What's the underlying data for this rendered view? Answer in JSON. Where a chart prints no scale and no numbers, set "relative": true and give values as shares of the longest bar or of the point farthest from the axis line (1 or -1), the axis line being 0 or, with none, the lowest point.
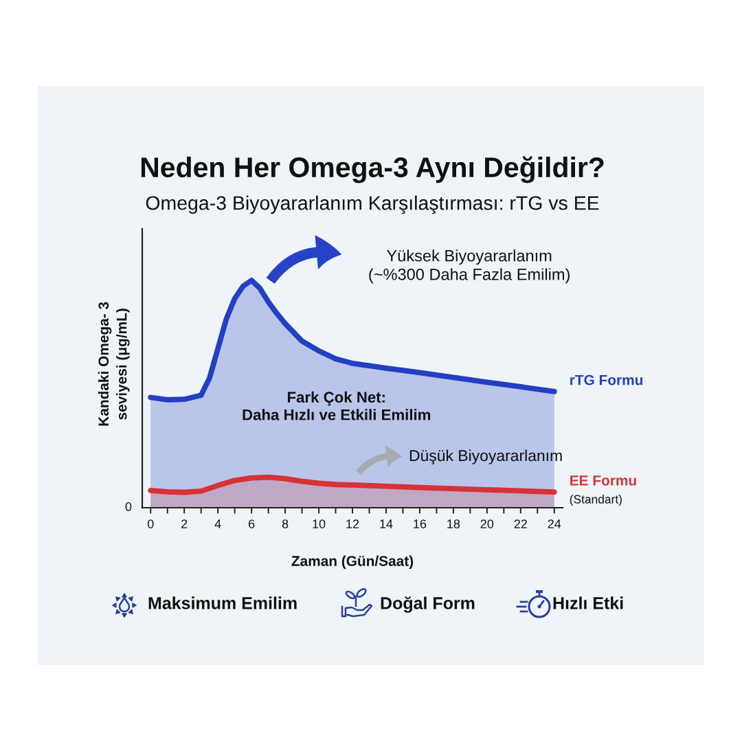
{
  "chart_data": {
    "type": "area",
    "relative": true,
    "title": "Neden Her Omega-3 Aynı Değildir?",
    "subtitle": "Omega-3 Biyoyararlanım Karşılaştırması: rTG vs EE",
    "xlabel": "Zaman (Gün/Saat)",
    "ylabel": "Kandaki Omega- 3\nseviyesi (μg/mL)",
    "xlim": [
      -0.5,
      24.5
    ],
    "xticks": [
      0,
      {
        "value": 1,
        "label": null
      },
      2,
      {
        "value": 3,
        "label": null
      },
      4,
      {
        "value": 5,
        "label": null
      },
      6,
      {
        "value": 7,
        "label": null
      },
      8,
      {
        "value": 9,
        "label": null
      },
      10,
      {
        "value": 11,
        "label": null
      },
      12,
      {
        "value": 13,
        "label": null
      },
      14,
      {
        "value": 15,
        "label": null
      },
      16,
      {
        "value": 17,
        "label": null
      },
      18,
      {
        "value": 19,
        "label": null
      },
      20,
      {
        "value": 21,
        "label": null
      },
      22,
      {
        "value": 23,
        "label": null
      },
      24
    ],
    "grid": false,
    "marker": "none",
    "line_style": "solid",
    "series": [
      {
        "name": "rTG Formu",
        "color": "#2340c4",
        "x": [
          0,
          1,
          2,
          3,
          3.5,
          4,
          4.5,
          5,
          5.5,
          6,
          6.5,
          7,
          7.5,
          8,
          9,
          10,
          11,
          12,
          14,
          16,
          18,
          20,
          22,
          24
        ],
        "values": [
          0.485,
          0.475,
          0.477,
          0.495,
          0.57,
          0.7,
          0.83,
          0.92,
          0.975,
          1.0,
          0.965,
          0.905,
          0.855,
          0.81,
          0.733,
          0.69,
          0.655,
          0.635,
          0.614,
          0.594,
          0.573,
          0.552,
          0.532,
          0.511
        ]
      },
      {
        "name": "EE Formu",
        "color": "#d63238",
        "x": [
          0,
          1,
          2,
          3,
          4,
          5,
          6,
          7,
          8,
          9,
          10,
          11,
          12,
          16,
          20,
          24
        ],
        "values": [
          0.076,
          0.07,
          0.068,
          0.073,
          0.098,
          0.12,
          0.131,
          0.134,
          0.128,
          0.116,
          0.108,
          0.102,
          0.1,
          0.089,
          0.079,
          0.069
        ]
      }
    ],
    "annotations": [
      "Yüksek Biyoyararlanım\n(~%300 Daha Fazla Emilim)",
      "Fark Çok Net:\nDaha Hızlı ve Etkili Emilim",
      "Düşük Biyoyararlanım",
      {
        "text": "(Standart)",
        "x": 24,
        "y": 0.069
      },
      "Maksimum Emilim",
      "Doğal Form",
      "Hızlı Etki",
      "0"
    ]
  }
}
